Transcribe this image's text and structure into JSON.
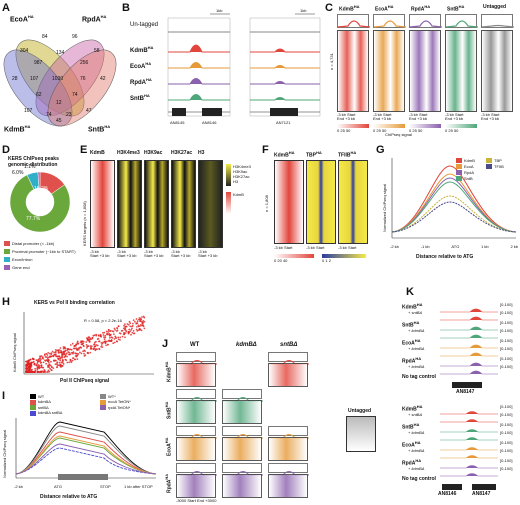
{
  "panels": {
    "A": "A",
    "B": "B",
    "C": "C",
    "D": "D",
    "E": "E",
    "F": "F",
    "G": "G",
    "H": "H",
    "I": "I",
    "J": "J",
    "K": "K"
  },
  "A": {
    "sets": {
      "EcoA": "EcoA",
      "RpdA": "RpdA",
      "KdmB": "KdmB",
      "SntB": "SntB"
    },
    "sup": "HA",
    "counts": [
      "304",
      "84",
      "96",
      "58",
      "987",
      "134",
      "256",
      "28",
      "107",
      "1030",
      "76",
      "42",
      "62",
      "74",
      "12",
      "107",
      "47",
      "74",
      "23",
      "45"
    ]
  },
  "B": {
    "untagged": "Un-tagged",
    "kdmb": "KdmB",
    "ecoa": "EcoA",
    "rpda": "RpdA",
    "sntb": "SntB",
    "sup": "HA",
    "scale": "1kb",
    "genes": [
      "AN8145",
      "AN8146",
      "AN7121"
    ]
  },
  "C": {
    "cols": [
      "KdmB",
      "EcoA",
      "RpdA",
      "SntB",
      "Untagged"
    ],
    "sup": "HA",
    "n": "n = 4,731",
    "ticks": [
      "-3 kb",
      "Start",
      "End",
      "+3 kb"
    ],
    "unit": "ChIPseq signal",
    "scale": [
      "0",
      "25",
      "50"
    ],
    "colors": {
      "kdmb": "#e2453b",
      "ecoa": "#e69a39",
      "rpda": "#8b61ad",
      "sntb": "#4fa67a",
      "untagged": "#888888"
    }
  },
  "D": {
    "title": "KERS ChIPseq peaks genomic distribution",
    "slices": [
      {
        "label": "Distal promoter (< -1kb)",
        "pct": "15.2%",
        "value": 15.2,
        "color": "#e0504c"
      },
      {
        "label": "Proximal promoter (~1kb to START)",
        "pct": "77.7%",
        "value": 77.7,
        "color": "#6aa83c"
      },
      {
        "label": "Exon/Intron",
        "pct": "6.0%",
        "value": 6.0,
        "color": "#2fb0c8"
      },
      {
        "label": "Gene end",
        "pct": "1.1%",
        "value": 1.1,
        "color": "#9b5fb5"
      }
    ]
  },
  "E": {
    "cols": [
      "KdmB",
      "H3K4me3",
      "H3K9ac",
      "H3K27ac",
      "H3"
    ],
    "rowlabel": "KERS targets (n = 1,808)",
    "legend": [
      "H3K4me3",
      "H3K9ac",
      "H3K27ac",
      "H3"
    ],
    "kdmb": "KdmB",
    "ticks": [
      "-3 kb",
      "Start",
      "+3 kb"
    ]
  },
  "F": {
    "cols": [
      "KdmB",
      "TBP",
      "TFIIB"
    ],
    "sup": "HA",
    "rowlabel": "n = 1,808",
    "scale1": [
      "0",
      "20",
      "40"
    ],
    "scale2": [
      "0",
      "1",
      "2"
    ],
    "leg1": "KdmB",
    "leg2": "TBP/TFIIB",
    "ticks": [
      "-3 kb",
      "Start",
      "+3 kb"
    ]
  },
  "G": {
    "ylabel": "Normalized ChIPseq signal",
    "xlabel": "Distance relative to ATG",
    "ticks": [
      "-2 kb",
      "-1 kb",
      "ATG",
      "1 kb",
      "2 kb"
    ],
    "legend": [
      "KdmB",
      "EcoA",
      "RpdA",
      "SntB",
      "TBP",
      "TFIIB"
    ]
  },
  "H": {
    "title": "KERS vs Pol II binding correlation",
    "stat": "R = 0.58, p < 2.2e-16",
    "xlabel": "Pol II ChIPseq signal",
    "ylabel": "KdmB ChIPseq signal"
  },
  "I": {
    "legend_left": [
      "WT",
      "kdmBΔ",
      "sntBΔ",
      "kdmBΔ sntBΔ"
    ],
    "legend_right": [
      "WT*",
      "ecoA TetON*",
      "rpdA TetON*"
    ],
    "ylabel": "Normalized ChIPseq signal",
    "xlabel": "Distance relative to ATG",
    "ticks": [
      "-2 kb",
      "ATG",
      "STOP",
      "1 kb after STOP"
    ]
  },
  "J": {
    "cols": [
      "WT",
      "kdmBΔ",
      "sntBΔ"
    ],
    "rows": [
      "KdmB",
      "SntB",
      "EcoA",
      "RpdA"
    ],
    "sup": "HA",
    "untagged": "Untagged",
    "ticks": [
      "-3000",
      "Start",
      "End",
      "+3000"
    ]
  },
  "K": {
    "top": [
      "KdmB",
      "SntB",
      "EcoA",
      "RpdA"
    ],
    "sup": "HA",
    "plus": "+",
    "mut1": "kdmBΔ",
    "mut2": "sntBΔ",
    "notag": "No tag control",
    "range": "[0-100]",
    "gene1": "AN8147",
    "genes2": [
      "AN8146",
      "AN8147"
    ]
  }
}
